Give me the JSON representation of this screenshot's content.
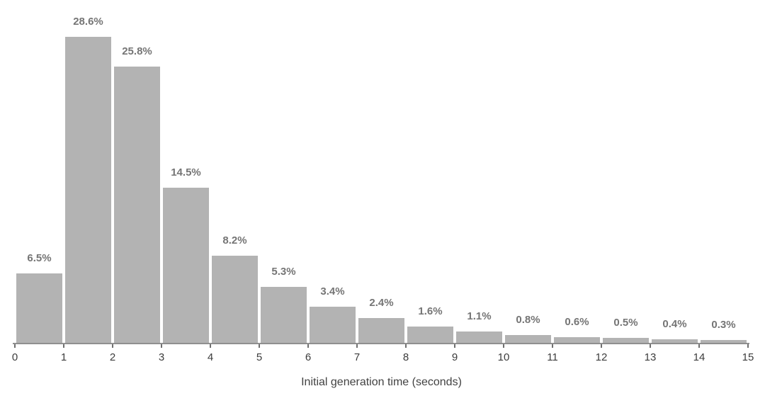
{
  "chart_data": {
    "type": "bar",
    "subtype": "histogram",
    "title": "",
    "xlabel": "Initial generation time (seconds)",
    "ylabel": "",
    "bins": [
      [
        0,
        1
      ],
      [
        1,
        2
      ],
      [
        2,
        3
      ],
      [
        3,
        4
      ],
      [
        4,
        5
      ],
      [
        5,
        6
      ],
      [
        6,
        7
      ],
      [
        7,
        8
      ],
      [
        8,
        9
      ],
      [
        9,
        10
      ],
      [
        10,
        11
      ],
      [
        11,
        12
      ],
      [
        12,
        13
      ],
      [
        13,
        14
      ],
      [
        14,
        15
      ]
    ],
    "values": [
      6.5,
      28.6,
      25.8,
      14.5,
      8.2,
      5.3,
      3.4,
      2.4,
      1.6,
      1.1,
      0.8,
      0.6,
      0.5,
      0.4,
      0.3
    ],
    "bar_labels": [
      "6.5%",
      "28.6%",
      "25.8%",
      "14.5%",
      "8.2%",
      "5.3%",
      "3.4%",
      "2.4%",
      "1.6%",
      "1.1%",
      "0.8%",
      "0.6%",
      "0.5%",
      "0.4%",
      "0.3%"
    ],
    "x_tick_labels": [
      "0",
      "1",
      "2",
      "3",
      "4",
      "5",
      "6",
      "7",
      "8",
      "9",
      "10",
      "11",
      "12",
      "13",
      "14",
      "15"
    ],
    "xlim": [
      0,
      15
    ],
    "ylim": [
      0,
      32
    ],
    "grid": false,
    "legend": false,
    "bar_color": "#b3b3b3",
    "bar_label_color": "#757575",
    "tick_label_color": "#3c3c3c",
    "axis_line_color": "#8f8f8f"
  }
}
